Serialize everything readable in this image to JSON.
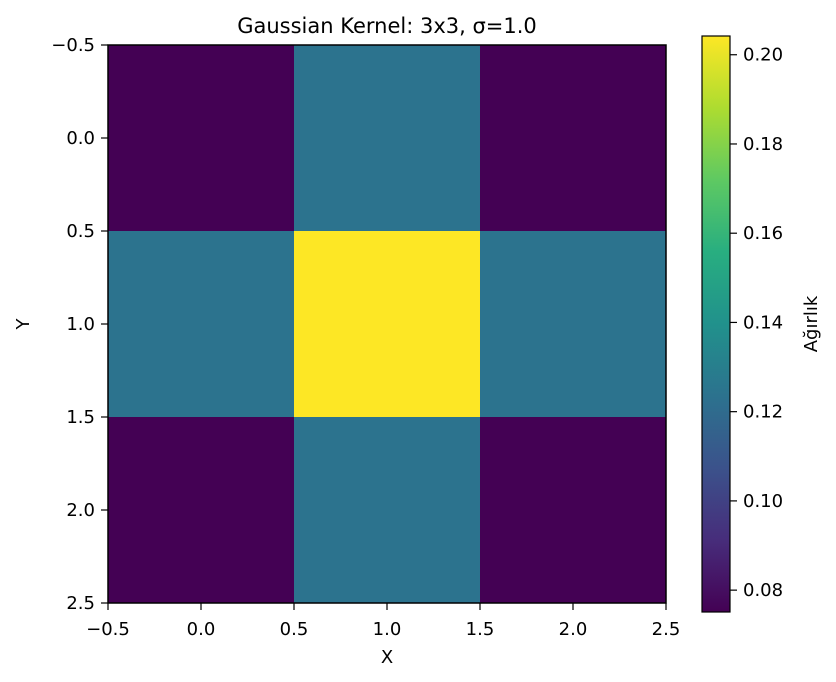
{
  "chart_data": {
    "type": "heatmap",
    "title": "Gaussian Kernel: 3x3, σ=1.0",
    "xlabel": "X",
    "ylabel": "Y",
    "colorbar_label": "Ağırlık",
    "colormap": "viridis",
    "xlim": [
      -0.5,
      2.5
    ],
    "ylim": [
      2.5,
      -0.5
    ],
    "x_ticks": [
      -0.5,
      0.0,
      0.5,
      1.0,
      1.5,
      2.0,
      2.5
    ],
    "x_tick_labels": [
      "−0.5",
      "0.0",
      "0.5",
      "1.0",
      "1.5",
      "2.0",
      "2.5"
    ],
    "y_ticks": [
      -0.5,
      0.0,
      0.5,
      1.0,
      1.5,
      2.0,
      2.5
    ],
    "y_tick_labels": [
      "−0.5",
      "0.0",
      "0.5",
      "1.0",
      "1.5",
      "2.0",
      "2.5"
    ],
    "values": [
      [
        0.0751,
        0.1238,
        0.0751
      ],
      [
        0.1238,
        0.2042,
        0.1238
      ],
      [
        0.0751,
        0.1238,
        0.0751
      ]
    ],
    "colorbar_range": [
      0.0751,
      0.2042
    ],
    "colorbar_ticks": [
      0.08,
      0.1,
      0.12,
      0.14,
      0.16,
      0.18,
      0.2
    ],
    "colorbar_tick_labels": [
      "0.08",
      "0.10",
      "0.12",
      "0.14",
      "0.16",
      "0.18",
      "0.20"
    ],
    "grid": false
  }
}
